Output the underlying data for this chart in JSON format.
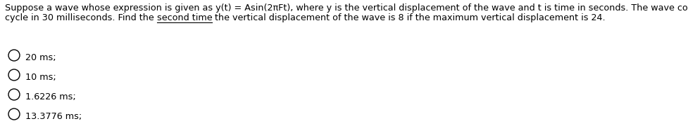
{
  "line1": "Suppose a wave whose expression is given as y(t) = Asin(2πFt), where y is the vertical displacement of the wave and t is time in seconds. The wave completes one",
  "line2_before": "cycle in 30 milliseconds. Find the ",
  "line2_underlined": "second time",
  "line2_after": " the vertical displacement of the wave is 8 if the maximum vertical displacement is 24.",
  "options": [
    "20 ms;",
    "10 ms;",
    "1.6226 ms;",
    "13.3776 ms;"
  ],
  "bg_color": "#ffffff",
  "text_color": "#000000",
  "font_size": 9.2,
  "fig_width": 9.78,
  "fig_height": 2.01,
  "dpi": 100
}
